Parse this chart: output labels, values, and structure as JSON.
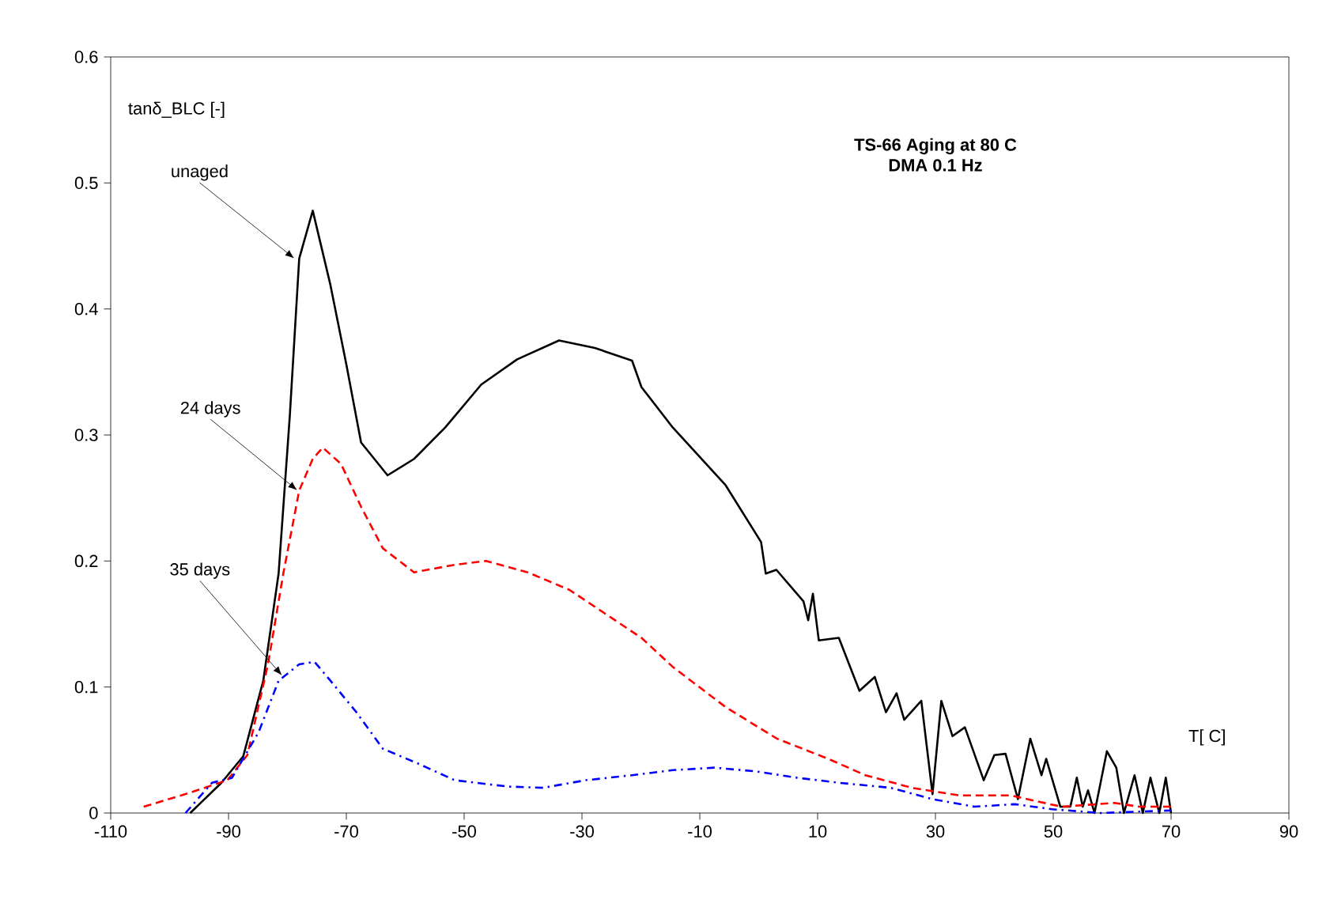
{
  "chart_data": {
    "type": "line",
    "title": "TS-66 Aging at 80 C",
    "subtitle": "DMA 0.1 Hz",
    "xlabel": "T[ C]",
    "ylabel": "tanδ_BLC [-]",
    "xlim": [
      -110,
      90
    ],
    "xticks": [
      -110,
      -90,
      -70,
      -50,
      -30,
      -10,
      10,
      30,
      50,
      70,
      90
    ],
    "ylim": [
      0,
      0.6
    ],
    "yticks": [
      0,
      0.1,
      0.2,
      0.3,
      0.4,
      0.5,
      0.6
    ],
    "grid": false,
    "marker": "none",
    "series": [
      {
        "color": "#000000",
        "line_style": "solid",
        "x": [
          -96.5,
          -91.2,
          -87.5,
          -84.1,
          -81.5,
          -79.6,
          -78,
          -75.7,
          -72.7,
          -70,
          -67.5,
          -63,
          -58.5,
          -53.2,
          -47.1,
          -41,
          -33.9,
          -27.8,
          -21.5,
          -19.9,
          -14.6,
          -5.6,
          0.4,
          1.2,
          3,
          7.6,
          8.4,
          9.2,
          10.2,
          13.6,
          17.1,
          19.7,
          21.6,
          23.4,
          24.7,
          27.6,
          29.5,
          31,
          32.9,
          35,
          38.2,
          40,
          41.9,
          44,
          46.1,
          48,
          48.8,
          51.2,
          52.9,
          54,
          55,
          55.9,
          57,
          59.1,
          60.7,
          62,
          63.8,
          65.2,
          66.5,
          68,
          69.1,
          70
        ],
        "values": [
          0,
          0.024,
          0.045,
          0.105,
          0.19,
          0.315,
          0.44,
          0.478,
          0.419,
          0.356,
          0.294,
          0.268,
          0.281,
          0.306,
          0.34,
          0.36,
          0.375,
          0.369,
          0.359,
          0.338,
          0.306,
          0.26,
          0.215,
          0.19,
          0.193,
          0.168,
          0.153,
          0.174,
          0.137,
          0.139,
          0.097,
          0.108,
          0.08,
          0.095,
          0.074,
          0.089,
          0.015,
          0.089,
          0.061,
          0.068,
          0.026,
          0.046,
          0.047,
          0.011,
          0.059,
          0.03,
          0.043,
          0.005,
          0.005,
          0.028,
          0.005,
          0.018,
          0,
          0.049,
          0.036,
          0,
          0.03,
          0,
          0.028,
          0,
          0.028,
          0
        ]
      },
      {
        "color": "#ff0000",
        "line_style": "dashed",
        "x": [
          -104.4,
          -97.3,
          -90.2,
          -86.8,
          -83.3,
          -80.7,
          -78,
          -75.7,
          -74,
          -70.9,
          -67.5,
          -63.8,
          -58.5,
          -51.6,
          -46.3,
          -39.2,
          -32.1,
          -26,
          -19.9,
          -14.6,
          -5.6,
          3.1,
          11.8,
          18.1,
          26,
          34,
          42.7,
          51.4,
          60.4,
          64.6,
          70
        ],
        "values": [
          0.005,
          0.015,
          0.026,
          0.046,
          0.118,
          0.19,
          0.256,
          0.281,
          0.29,
          0.277,
          0.243,
          0.21,
          0.191,
          0.197,
          0.2,
          0.191,
          0.177,
          0.158,
          0.139,
          0.116,
          0.084,
          0.059,
          0.043,
          0.03,
          0.02,
          0.014,
          0.014,
          0.005,
          0.008,
          0.005,
          0.005
        ]
      },
      {
        "color": "#0000ff",
        "line_style": "dashdot",
        "x": [
          -97.3,
          -92.8,
          -89.4,
          -84.9,
          -81.5,
          -78,
          -75.4,
          -72.7,
          -68.3,
          -63.8,
          -57.7,
          -51.6,
          -42.6,
          -36.6,
          -29.4,
          -21.5,
          -14.6,
          -7.5,
          -0.4,
          6.5,
          13.6,
          22.4,
          29.5,
          36.6,
          43.5,
          49.8,
          58,
          70
        ],
        "values": [
          0,
          0.024,
          0.028,
          0.064,
          0.105,
          0.118,
          0.12,
          0.105,
          0.08,
          0.051,
          0.039,
          0.026,
          0.021,
          0.02,
          0.026,
          0.03,
          0.034,
          0.036,
          0.033,
          0.028,
          0.024,
          0.02,
          0.011,
          0.005,
          0.007,
          0.003,
          0,
          0.002
        ]
      }
    ],
    "annotations": [
      {
        "text": "unaged",
        "x": -78.8,
        "y": 0.44
      },
      {
        "text": "24 days",
        "x": -78.3,
        "y": 0.256
      },
      {
        "text": "35 days",
        "x": -80.9,
        "y": 0.109
      }
    ]
  }
}
